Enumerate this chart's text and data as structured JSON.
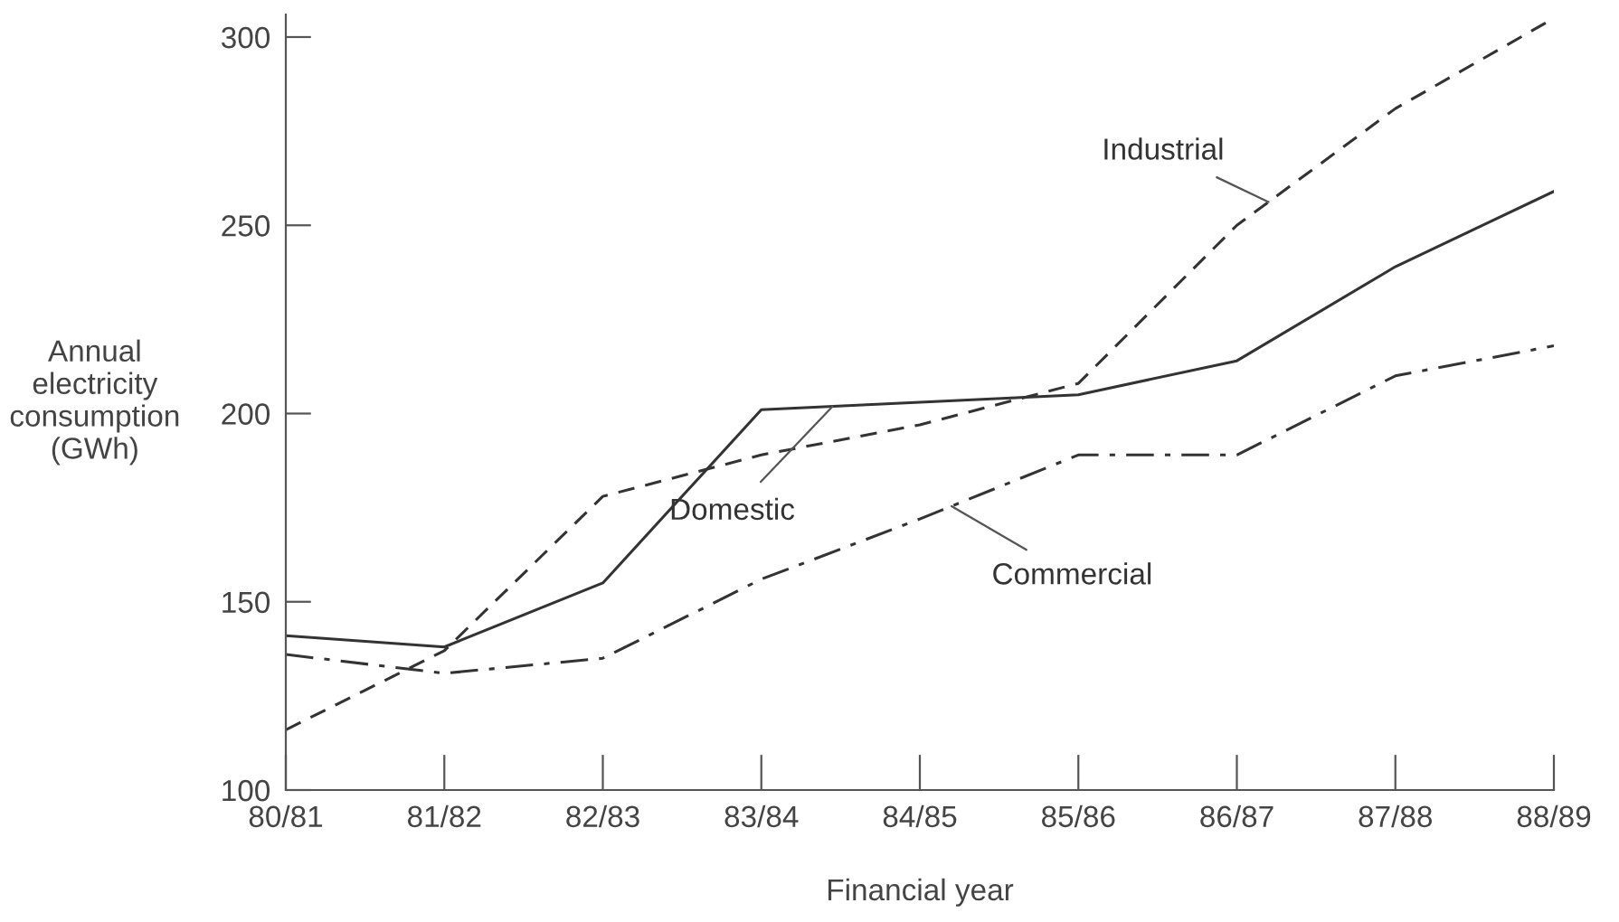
{
  "chart_data": {
    "type": "line",
    "xlabel": "Financial year",
    "ylabel": "Annual\nelectricity\nconsumption\n(GWh)",
    "categories": [
      "80/81",
      "81/82",
      "82/83",
      "83/84",
      "84/85",
      "85/86",
      "86/87",
      "87/88",
      "88/89"
    ],
    "series": [
      {
        "name": "Industrial",
        "color": "#333333",
        "line_style": "dashed",
        "values": [
          116,
          137,
          178,
          189,
          197,
          208,
          250,
          281,
          305
        ]
      },
      {
        "name": "Domestic",
        "color": "#333333",
        "line_style": "solid",
        "values": [
          141,
          138,
          155,
          201,
          203,
          205,
          214,
          239,
          259
        ]
      },
      {
        "name": "Commercial",
        "color": "#333333",
        "line_style": "dashdot",
        "values": [
          136,
          131,
          135,
          156,
          172,
          189,
          189,
          210,
          218
        ]
      }
    ],
    "ylim": [
      100,
      306
    ],
    "yticks": [
      100,
      150,
      200,
      250,
      300
    ],
    "grid": false,
    "legend": false,
    "marker": "none"
  }
}
